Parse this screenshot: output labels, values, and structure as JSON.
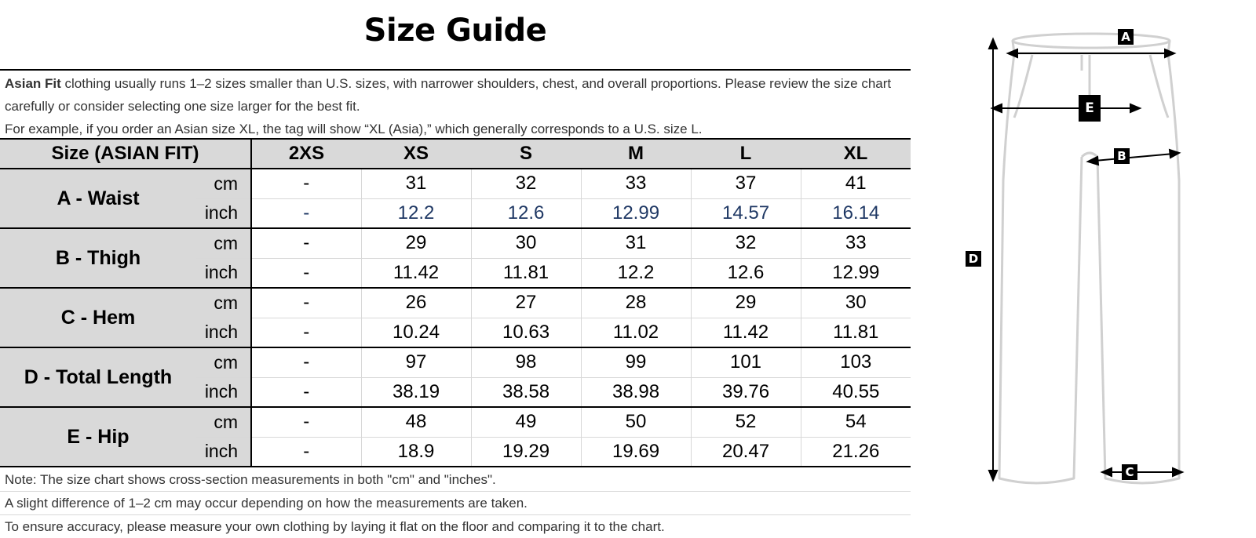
{
  "title": "Size Guide",
  "intro": {
    "bold": "Asian Fit",
    "line1": " clothing usually runs 1–2 sizes smaller than U.S. sizes, with narrower shoulders, chest, and overall proportions. Please review the size chart carefully or consider selecting one size larger for the best fit.",
    "line2": "For example, if you order an Asian size XL, the tag will show “XL (Asia),” which generally corresponds to a U.S. size L."
  },
  "table": {
    "header": "Size (ASIAN FIT)",
    "sizes": [
      "2XS",
      "XS",
      "S",
      "M",
      "L",
      "XL"
    ],
    "rows": [
      {
        "label": "A - Waist",
        "cm": [
          "-",
          "31",
          "32",
          "33",
          "37",
          "41"
        ],
        "inch": [
          "-",
          "12.2",
          "12.6",
          "12.99",
          "14.57",
          "16.14"
        ]
      },
      {
        "label": "B - Thigh",
        "cm": [
          "-",
          "29",
          "30",
          "31",
          "32",
          "33"
        ],
        "inch": [
          "-",
          "11.42",
          "11.81",
          "12.2",
          "12.6",
          "12.99"
        ]
      },
      {
        "label": "C - Hem",
        "cm": [
          "-",
          "26",
          "27",
          "28",
          "29",
          "30"
        ],
        "inch": [
          "-",
          "10.24",
          "10.63",
          "11.02",
          "11.42",
          "11.81"
        ]
      },
      {
        "label": "D - Total Length",
        "cm": [
          "-",
          "97",
          "98",
          "99",
          "101",
          "103"
        ],
        "inch": [
          "-",
          "38.19",
          "38.58",
          "38.98",
          "39.76",
          "40.55"
        ]
      },
      {
        "label": "E - Hip",
        "cm": [
          "-",
          "48",
          "49",
          "50",
          "52",
          "54"
        ],
        "inch": [
          "-",
          "18.9",
          "19.29",
          "19.69",
          "20.47",
          "21.26"
        ]
      }
    ],
    "unit_cm": "cm",
    "unit_inch": "inch"
  },
  "notes": [
    "Note: The size chart shows cross-section measurements in both \"cm\" and \"inches\".",
    "A slight difference of 1–2 cm may occur depending on how the measurements are taken.",
    "To ensure accuracy, please measure your own clothing by laying it flat on the floor and comparing it to the chart."
  ],
  "diagram": {
    "labels": {
      "a": "A",
      "b": "B",
      "c": "C",
      "d": "D",
      "e": "E"
    },
    "outline_color": "#d0d0d0",
    "arrow_color": "#000000",
    "label_bg": "#000000"
  }
}
